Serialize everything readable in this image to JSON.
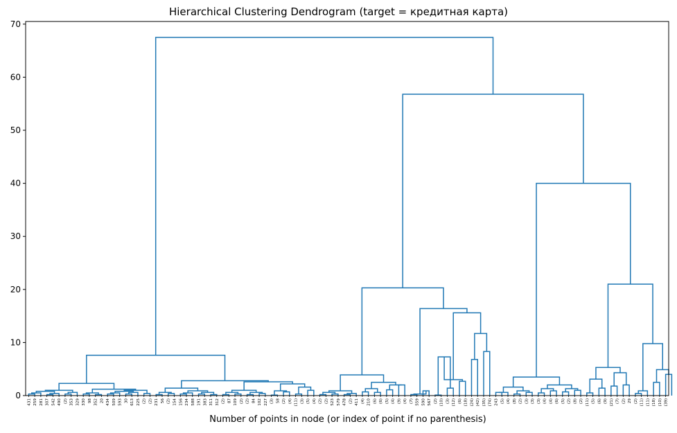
{
  "chart_data": {
    "type": "dendrogram",
    "title": "Hierarchical Clustering Dendrogram (target = кредитная карта)",
    "xlabel": "Number of points in node (or index of point if no parenthesis)",
    "ylabel": "",
    "ylim": [
      0,
      70.5
    ],
    "yticks": [
      0,
      10,
      20,
      30,
      40,
      50,
      60,
      70
    ],
    "grid": false,
    "legend": "none",
    "colors": {
      "line": "#1f77b4",
      "axis": "#000000"
    },
    "leaf_labels": [
      "431",
      "259",
      "281",
      "307",
      "542",
      "490",
      "(2)",
      "353",
      "329",
      "330",
      "98",
      "352",
      "20",
      "434",
      "509",
      "593",
      "30",
      "613",
      "225",
      "(2)",
      "(2)",
      "231",
      "56",
      "(2)",
      "154",
      "156",
      "234",
      "588",
      "191",
      "383",
      "311",
      "312",
      "(2)",
      "87",
      "109",
      "(2)",
      "(2)",
      "84",
      "102",
      "227",
      "(3)",
      "58",
      "(2)",
      "(4)",
      "(11)",
      "(3)",
      "(5)",
      "(4)",
      "(2)",
      "(2)",
      "523",
      "579",
      "478",
      "(2)",
      "411",
      "(4)",
      "210",
      "(6)",
      "(6)",
      "(5)",
      "(4)",
      "(9)",
      "(4)",
      "(7)",
      "559",
      "590",
      "567",
      "(2)",
      "(10)",
      "(3)",
      "(12)",
      "(6)",
      "(18)",
      "(24)",
      "(42)",
      "(35)",
      "(74)",
      "243",
      "(5)",
      "(4)",
      "(8)",
      "(2)",
      "(3)",
      "(3)",
      "(3)",
      "(4)",
      "(4)",
      "(6)",
      "(5)",
      "(2)",
      "(8)",
      "(2)",
      "(11)",
      "(5)",
      "(6)",
      "(9)",
      "(21)",
      "(7)",
      "(2)",
      "29",
      "(2)",
      "(11)",
      "(11)",
      "(18)",
      "(10)",
      "(39)"
    ],
    "links": [
      [
        0,
        1,
        0.3
      ],
      [
        -1,
        2,
        0.5
      ],
      [
        3,
        4,
        0.2
      ],
      [
        -3,
        5,
        0.4
      ],
      [
        -2,
        -4,
        0.8
      ],
      [
        6,
        7,
        0.3
      ],
      [
        -6,
        8,
        0.6
      ],
      [
        -5,
        -7,
        1.0
      ],
      [
        9,
        10,
        0.3
      ],
      [
        11,
        12,
        0.2
      ],
      [
        -9,
        -10,
        0.5
      ],
      [
        13,
        14,
        0.3
      ],
      [
        -12,
        15,
        0.5
      ],
      [
        16,
        17,
        0.3
      ],
      [
        -14,
        18,
        0.6
      ],
      [
        -13,
        -15,
        0.8
      ],
      [
        19,
        20,
        0.4
      ],
      [
        -16,
        -17,
        1.0
      ],
      [
        -11,
        -18,
        1.2
      ],
      [
        -8,
        -19,
        2.3
      ],
      [
        21,
        22,
        0.2
      ],
      [
        23,
        24,
        0.4
      ],
      [
        -21,
        -22,
        0.6
      ],
      [
        25,
        26,
        0.3
      ],
      [
        -24,
        27,
        0.5
      ],
      [
        28,
        29,
        0.3
      ],
      [
        30,
        31,
        0.2
      ],
      [
        -26,
        -27,
        0.6
      ],
      [
        -25,
        -28,
        0.9
      ],
      [
        -23,
        -29,
        1.4
      ],
      [
        32,
        33,
        0.2
      ],
      [
        34,
        35,
        0.3
      ],
      [
        -31,
        -32,
        0.6
      ],
      [
        36,
        37,
        0.2
      ],
      [
        38,
        39,
        0.4
      ],
      [
        -34,
        -35,
        0.6
      ],
      [
        -33,
        -36,
        1.0
      ],
      [
        40,
        41,
        0.1
      ],
      [
        42,
        43,
        0.7
      ],
      [
        -38,
        -39,
        0.9
      ],
      [
        44,
        45,
        0.3
      ],
      [
        46,
        47,
        1.0
      ],
      [
        -41,
        -42,
        1.6
      ],
      [
        -40,
        -43,
        2.2
      ],
      [
        -37,
        -44,
        2.6
      ],
      [
        -30,
        -45,
        2.8
      ],
      [
        -20,
        -46,
        7.6
      ],
      [
        48,
        49,
        0.2
      ],
      [
        50,
        51,
        0.3
      ],
      [
        -48,
        -49,
        0.6
      ],
      [
        52,
        53,
        0.2
      ],
      [
        -51,
        54,
        0.4
      ],
      [
        -50,
        -52,
        0.9
      ],
      [
        55,
        56,
        0.7
      ],
      [
        57,
        58,
        0.6
      ],
      [
        -54,
        -55,
        1.3
      ],
      [
        59,
        60,
        1.1
      ],
      [
        61,
        62,
        2.0
      ],
      [
        -57,
        -58,
        2.0
      ],
      [
        -56,
        -59,
        2.5
      ],
      [
        -53,
        -60,
        3.9
      ],
      [
        63,
        64,
        0.2
      ],
      [
        65,
        66,
        0.9
      ],
      [
        -62,
        -63,
        0.3
      ],
      [
        67,
        68,
        0.1
      ],
      [
        69,
        70,
        1.4
      ],
      [
        -65,
        -66,
        7.3
      ],
      [
        71,
        72,
        2.7
      ],
      [
        -67,
        -68,
        3.0
      ],
      [
        73,
        74,
        6.8
      ],
      [
        75,
        76,
        8.3
      ],
      [
        -70,
        -71,
        11.7
      ],
      [
        -69,
        -72,
        15.6
      ],
      [
        -64,
        -73,
        16.4
      ],
      [
        -61,
        -74,
        20.3
      ],
      [
        77,
        78,
        0.6
      ],
      [
        -76,
        79,
        0.6
      ],
      [
        80,
        81,
        0.3
      ],
      [
        82,
        83,
        0.6
      ],
      [
        -78,
        -79,
        0.9
      ],
      [
        -77,
        -80,
        1.6
      ],
      [
        84,
        85,
        0.5
      ],
      [
        86,
        87,
        0.9
      ],
      [
        -82,
        -83,
        1.3
      ],
      [
        88,
        89,
        0.7
      ],
      [
        90,
        91,
        1.0
      ],
      [
        -85,
        -86,
        1.3
      ],
      [
        -84,
        -87,
        2.0
      ],
      [
        -81,
        -88,
        3.5
      ],
      [
        92,
        93,
        0.5
      ],
      [
        94,
        95,
        1.4
      ],
      [
        -90,
        -91,
        3.1
      ],
      [
        96,
        97,
        1.8
      ],
      [
        98,
        99,
        2.0
      ],
      [
        -93,
        -94,
        4.3
      ],
      [
        -92,
        -95,
        5.3
      ],
      [
        100,
        101,
        0.4
      ],
      [
        -97,
        102,
        0.9
      ],
      [
        103,
        104,
        2.5
      ],
      [
        105,
        106,
        4.0
      ],
      [
        -99,
        -100,
        4.9
      ],
      [
        -98,
        -101,
        9.8
      ],
      [
        -96,
        -102,
        21.0
      ],
      [
        -89,
        -103,
        40.0
      ],
      [
        -75,
        -104,
        56.8
      ],
      [
        -47,
        -105,
        67.5
      ]
    ]
  }
}
